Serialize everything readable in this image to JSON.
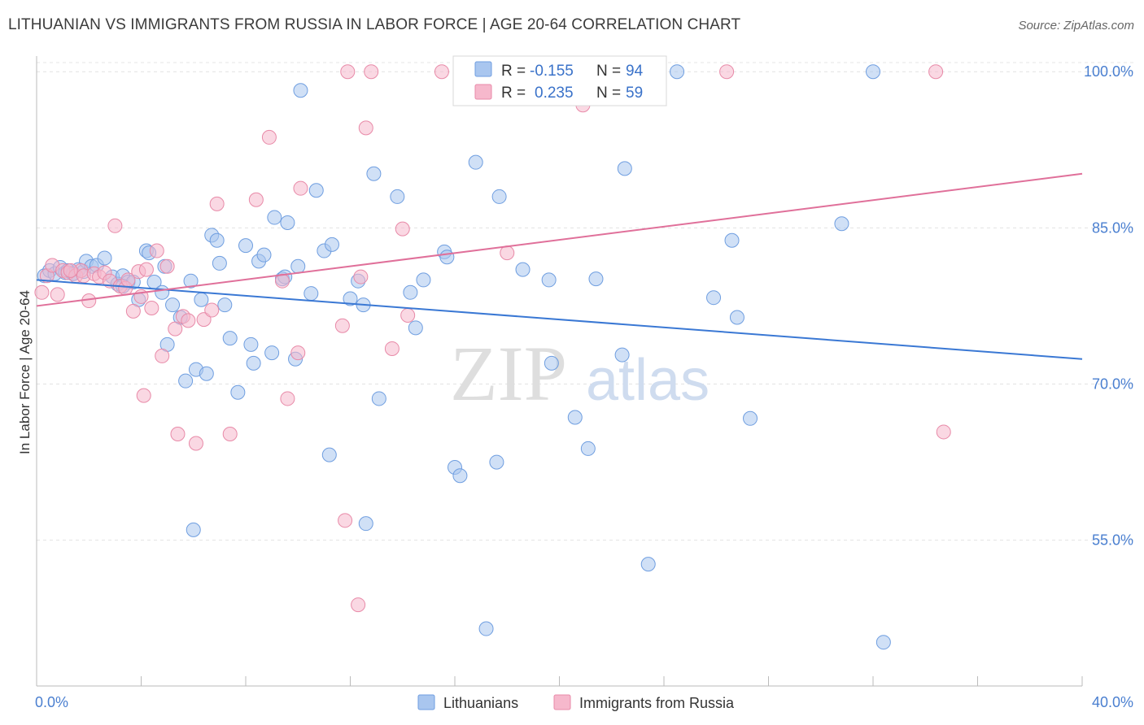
{
  "title": "LITHUANIAN VS IMMIGRANTS FROM RUSSIA IN LABOR FORCE | AGE 20-64 CORRELATION CHART",
  "source": "Source: ZipAtlas.com",
  "watermark": {
    "zip": "ZIP",
    "atlas": "atlas"
  },
  "chart_data": {
    "type": "scatter",
    "xlabel": "",
    "ylabel": "In Labor Force | Age 20-64",
    "xlim": [
      0.0,
      40.0
    ],
    "ylim": [
      41.0,
      101.5
    ],
    "x_tick_labels": [
      "0.0%",
      "40.0%"
    ],
    "y_ticks": [
      {
        "value": 100.0,
        "label": "100.0%"
      },
      {
        "value": 85.0,
        "label": "85.0%"
      },
      {
        "value": 70.0,
        "label": "70.0%"
      },
      {
        "value": 55.0,
        "label": "55.0%"
      }
    ],
    "legend": {
      "position": "top-center",
      "rows": [
        {
          "r_label": "R =",
          "r_value": "-0.155",
          "n_label": "N =",
          "n_value": "94",
          "color": "#a9c6ef"
        },
        {
          "r_label": "R =",
          "r_value": "0.235",
          "n_label": "N =",
          "n_value": "59",
          "color": "#f6b8cc"
        }
      ]
    },
    "series": [
      {
        "name": "Lithuanians",
        "color": "#a9c6ef",
        "stroke": "#6f9ee0",
        "trend": {
          "x": [
            0.0,
            40.0
          ],
          "y": [
            80.0,
            72.4
          ],
          "color": "#3a78d4"
        },
        "points": [
          [
            0.3,
            80.4
          ],
          [
            0.5,
            80.9
          ],
          [
            0.7,
            80.6
          ],
          [
            0.9,
            81.2
          ],
          [
            1.1,
            80.7
          ],
          [
            1.2,
            80.9
          ],
          [
            1.4,
            80.6
          ],
          [
            1.6,
            81.0
          ],
          [
            1.8,
            80.8
          ],
          [
            1.9,
            81.8
          ],
          [
            2.1,
            81.3
          ],
          [
            2.3,
            81.4
          ],
          [
            2.6,
            82.1
          ],
          [
            2.9,
            80.3
          ],
          [
            3.1,
            79.6
          ],
          [
            3.3,
            80.4
          ],
          [
            3.5,
            79.8
          ],
          [
            3.7,
            79.8
          ],
          [
            3.9,
            78.1
          ],
          [
            4.2,
            82.8
          ],
          [
            4.3,
            82.6
          ],
          [
            4.5,
            79.8
          ],
          [
            4.8,
            78.8
          ],
          [
            4.9,
            81.3
          ],
          [
            5.0,
            73.8
          ],
          [
            5.2,
            77.6
          ],
          [
            5.5,
            76.4
          ],
          [
            5.7,
            70.3
          ],
          [
            5.9,
            79.9
          ],
          [
            6.1,
            71.4
          ],
          [
            6.3,
            78.1
          ],
          [
            6.5,
            71.0
          ],
          [
            6.7,
            84.3
          ],
          [
            6.9,
            83.8
          ],
          [
            7.0,
            81.6
          ],
          [
            7.2,
            77.6
          ],
          [
            7.4,
            74.4
          ],
          [
            7.7,
            69.2
          ],
          [
            8.0,
            83.3
          ],
          [
            8.2,
            73.8
          ],
          [
            8.3,
            72.0
          ],
          [
            8.5,
            81.8
          ],
          [
            8.7,
            82.4
          ],
          [
            9.0,
            73.0
          ],
          [
            9.1,
            86.0
          ],
          [
            9.4,
            80.1
          ],
          [
            9.5,
            80.3
          ],
          [
            9.6,
            85.5
          ],
          [
            9.9,
            72.4
          ],
          [
            10.0,
            81.3
          ],
          [
            10.1,
            98.2
          ],
          [
            10.5,
            78.7
          ],
          [
            10.7,
            88.6
          ],
          [
            11.0,
            82.8
          ],
          [
            11.2,
            63.2
          ],
          [
            11.3,
            83.4
          ],
          [
            12.0,
            78.2
          ],
          [
            12.3,
            79.9
          ],
          [
            12.5,
            77.6
          ],
          [
            12.6,
            56.6
          ],
          [
            12.9,
            90.2
          ],
          [
            13.1,
            68.6
          ],
          [
            13.8,
            88.0
          ],
          [
            14.3,
            78.8
          ],
          [
            14.5,
            75.4
          ],
          [
            14.8,
            80.0
          ],
          [
            15.6,
            82.7
          ],
          [
            15.7,
            82.2
          ],
          [
            16.0,
            62.0
          ],
          [
            16.2,
            61.2
          ],
          [
            16.8,
            91.3
          ],
          [
            17.2,
            46.5
          ],
          [
            17.6,
            62.5
          ],
          [
            17.7,
            88.0
          ],
          [
            18.6,
            81.0
          ],
          [
            19.6,
            80.0
          ],
          [
            19.7,
            72.0
          ],
          [
            20.6,
            66.8
          ],
          [
            21.1,
            63.8
          ],
          [
            21.4,
            80.1
          ],
          [
            22.4,
            72.8
          ],
          [
            22.5,
            90.7
          ],
          [
            23.4,
            52.7
          ],
          [
            24.5,
            100.0
          ],
          [
            25.9,
            78.3
          ],
          [
            26.6,
            83.8
          ],
          [
            26.8,
            76.4
          ],
          [
            27.3,
            66.7
          ],
          [
            30.8,
            85.4
          ],
          [
            32.0,
            100.0
          ],
          [
            32.4,
            45.2
          ],
          [
            6.0,
            56.0
          ],
          [
            1.4,
            80.6
          ],
          [
            3.3,
            79.4
          ]
        ]
      },
      {
        "name": "Immigrants from Russia",
        "color": "#f6b8cc",
        "stroke": "#e88aa8",
        "trend": {
          "x": [
            0.0,
            40.0
          ],
          "y": [
            77.5,
            90.2
          ],
          "color": "#e0709a"
        },
        "points": [
          [
            0.2,
            78.8
          ],
          [
            0.4,
            80.4
          ],
          [
            0.6,
            81.4
          ],
          [
            0.8,
            78.6
          ],
          [
            1.0,
            80.9
          ],
          [
            1.2,
            80.7
          ],
          [
            1.5,
            80.4
          ],
          [
            1.7,
            80.9
          ],
          [
            1.8,
            80.4
          ],
          [
            2.0,
            78.0
          ],
          [
            2.2,
            80.6
          ],
          [
            2.4,
            80.3
          ],
          [
            2.6,
            80.7
          ],
          [
            2.8,
            79.9
          ],
          [
            3.0,
            85.2
          ],
          [
            3.2,
            79.4
          ],
          [
            3.4,
            79.2
          ],
          [
            3.5,
            80.0
          ],
          [
            3.7,
            77.0
          ],
          [
            3.9,
            80.8
          ],
          [
            4.0,
            78.4
          ],
          [
            4.1,
            68.9
          ],
          [
            4.2,
            81.0
          ],
          [
            4.4,
            77.3
          ],
          [
            4.6,
            82.8
          ],
          [
            4.8,
            72.7
          ],
          [
            5.0,
            81.3
          ],
          [
            5.3,
            75.3
          ],
          [
            5.4,
            65.2
          ],
          [
            5.6,
            76.5
          ],
          [
            5.8,
            76.1
          ],
          [
            6.1,
            64.3
          ],
          [
            6.4,
            76.2
          ],
          [
            6.7,
            77.1
          ],
          [
            6.9,
            87.3
          ],
          [
            7.4,
            65.2
          ],
          [
            8.4,
            87.7
          ],
          [
            8.9,
            93.7
          ],
          [
            9.4,
            79.9
          ],
          [
            9.6,
            68.6
          ],
          [
            10.0,
            73.0
          ],
          [
            10.1,
            88.8
          ],
          [
            11.7,
            75.6
          ],
          [
            11.8,
            56.9
          ],
          [
            11.9,
            100.0
          ],
          [
            12.3,
            48.8
          ],
          [
            12.4,
            80.3
          ],
          [
            12.6,
            94.6
          ],
          [
            12.8,
            100.0
          ],
          [
            13.6,
            73.4
          ],
          [
            14.0,
            84.9
          ],
          [
            14.2,
            76.6
          ],
          [
            15.5,
            100.0
          ],
          [
            20.9,
            96.8
          ],
          [
            18.0,
            82.6
          ],
          [
            26.4,
            100.0
          ],
          [
            34.4,
            100.0
          ],
          [
            34.7,
            65.4
          ],
          [
            1.3,
            80.9
          ]
        ]
      }
    ]
  },
  "bottom_legend": [
    {
      "label": "Lithuanians",
      "color": "#a9c6ef"
    },
    {
      "label": "Immigrants from Russia",
      "color": "#f6b8cc"
    }
  ]
}
